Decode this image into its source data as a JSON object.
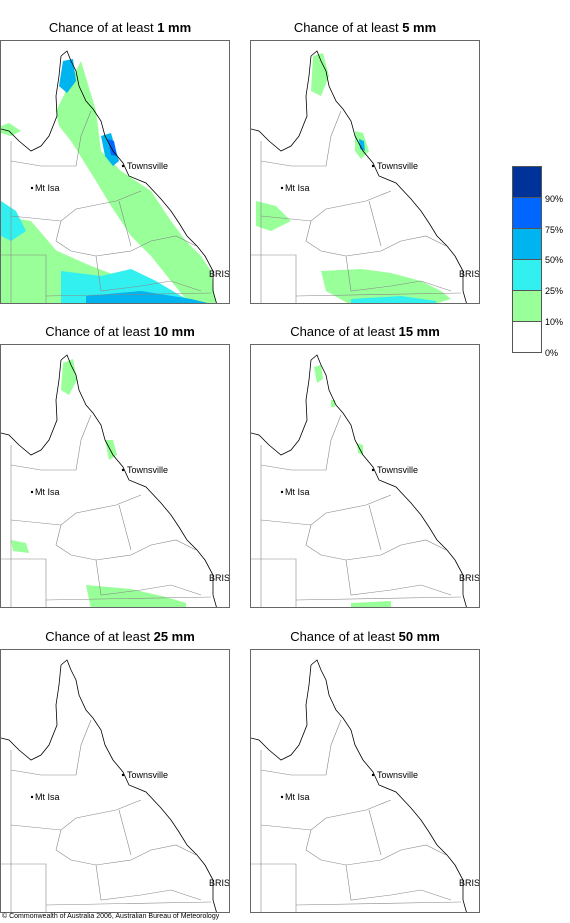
{
  "panels": [
    {
      "prefix": "Chance of at least ",
      "amount": "1 mm"
    },
    {
      "prefix": "Chance of at least ",
      "amount": "5 mm"
    },
    {
      "prefix": "Chance of at least ",
      "amount": "10 mm"
    },
    {
      "prefix": "Chance of at least ",
      "amount": "15 mm"
    },
    {
      "prefix": "Chance of at least ",
      "amount": "25 mm"
    },
    {
      "prefix": "Chance of at least ",
      "amount": "50 mm"
    }
  ],
  "places": {
    "townsville": "Townsville",
    "mt_isa": "Mt Isa",
    "brisbane": "BRIS"
  },
  "legend": {
    "labels": [
      "90%",
      "75%",
      "50%",
      "25%",
      "10%",
      "0%"
    ],
    "colors": [
      "#003399",
      "#0066ff",
      "#00b4f0",
      "#33f0f0",
      "#99ff99",
      "#ffffff"
    ]
  },
  "copyright": "© Commonwealth of Australia 2006, Australian Bureau of Meteorology"
}
